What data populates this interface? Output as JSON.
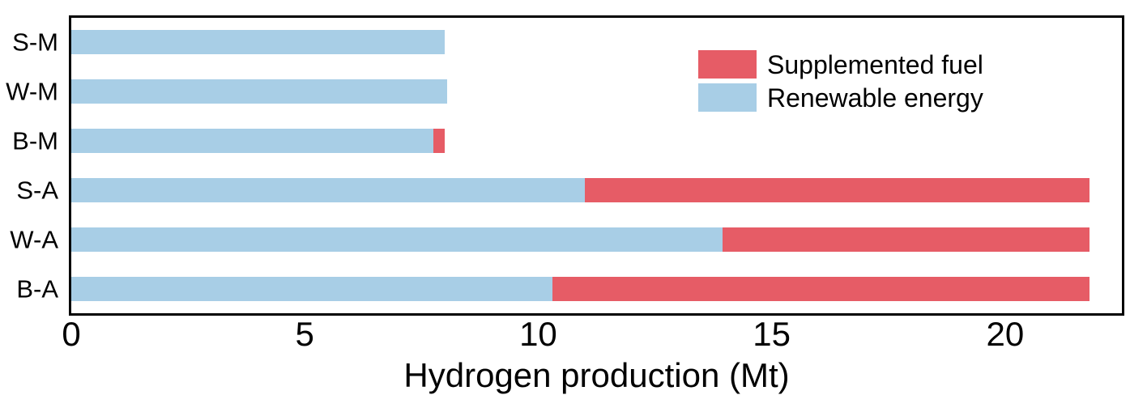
{
  "chart_data": {
    "type": "bar",
    "orientation": "horizontal",
    "stacked": true,
    "title": "",
    "xlabel": "Hydrogen production (Mt)",
    "ylabel": "",
    "xlim": [
      0,
      22.5
    ],
    "xticks": [
      0,
      5,
      10,
      15,
      20
    ],
    "grid": false,
    "categories": [
      "S-M",
      "W-M",
      "B-M",
      "S-A",
      "W-A",
      "B-A"
    ],
    "series": [
      {
        "name": "Renewable energy",
        "color": "#A8CEE6",
        "values": [
          8.0,
          8.05,
          7.75,
          11.0,
          13.95,
          10.3
        ]
      },
      {
        "name": "Supplemented fuel",
        "color": "#E65C66",
        "values": [
          0,
          0,
          0.25,
          10.8,
          7.85,
          11.5
        ]
      }
    ],
    "totals": [
      8.0,
      8.05,
      8.0,
      21.8,
      21.8,
      21.8
    ],
    "legend": {
      "position": "upper-right",
      "entries": [
        "Supplemented fuel",
        "Renewable energy"
      ]
    },
    "colors": {
      "plot_border": "#000000",
      "text": "#000000",
      "background": "#ffffff"
    }
  }
}
